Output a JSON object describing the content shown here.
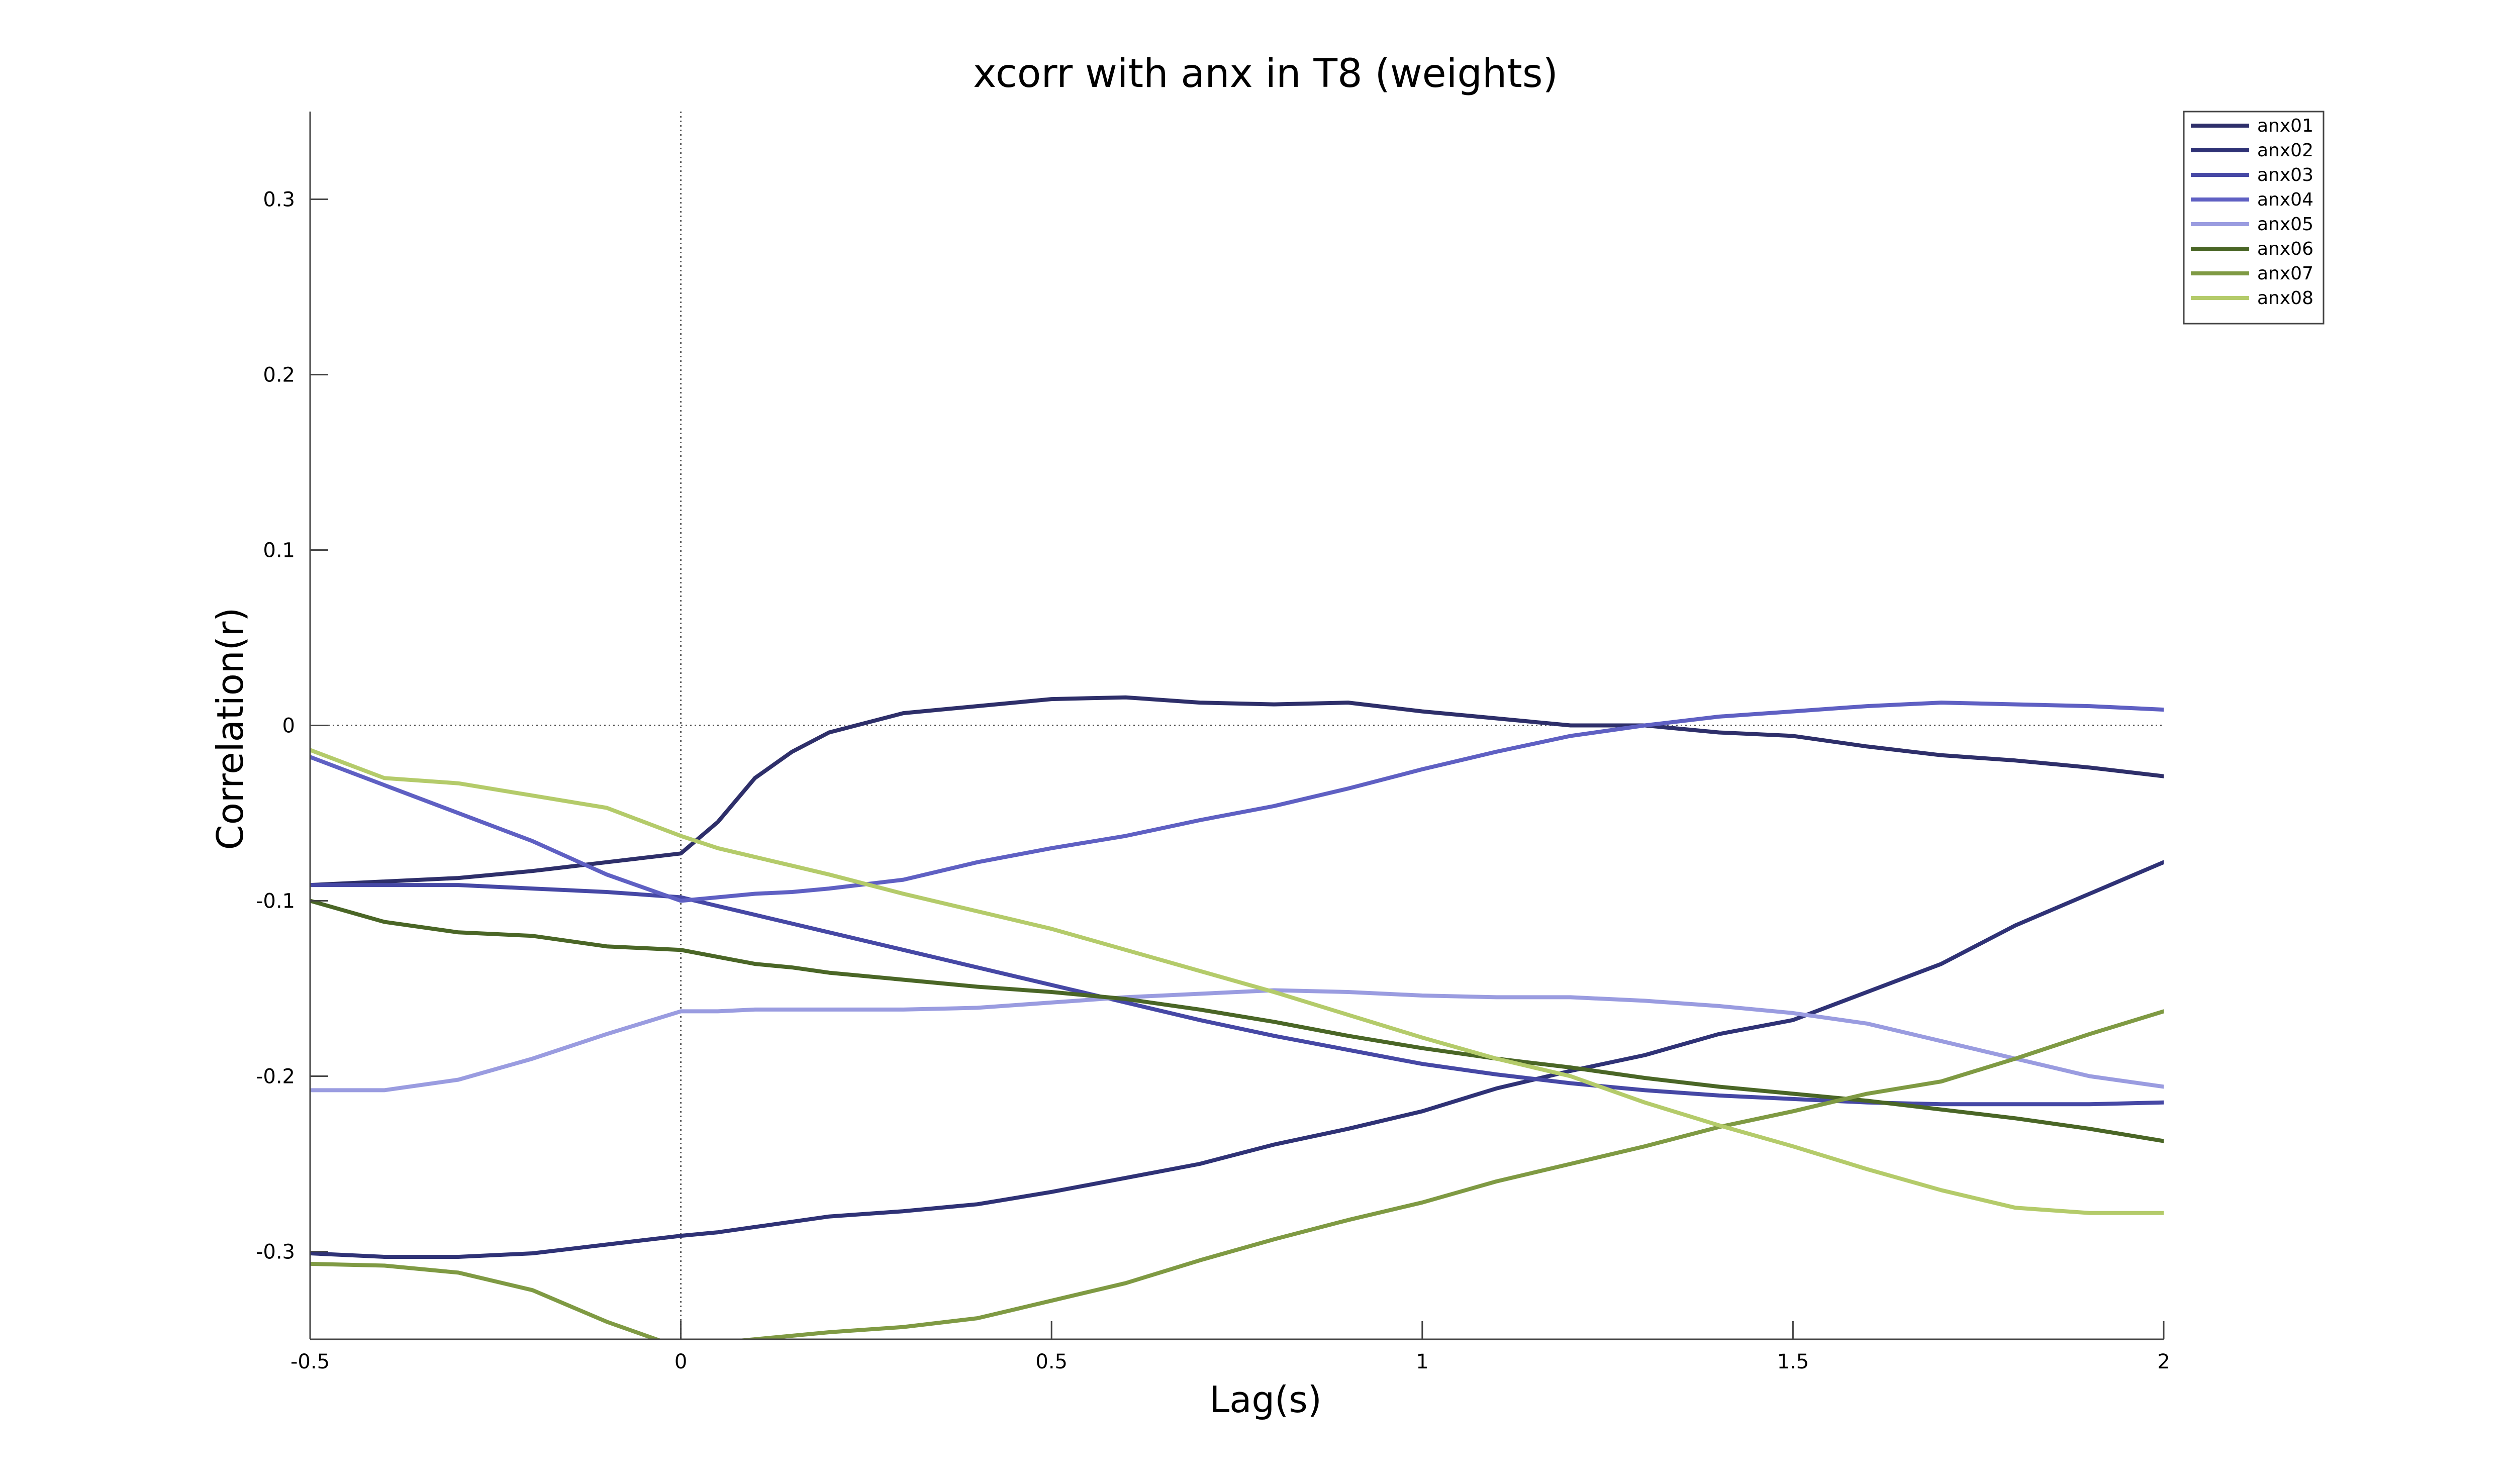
{
  "chart_data": {
    "type": "line",
    "title": "xcorr with anx in T8 (weights)",
    "xlabel": "Lag(s)",
    "ylabel": "Correlation(r)",
    "xlim": [
      -0.5,
      2
    ],
    "ylim": [
      -0.35,
      0.35
    ],
    "xticks": [
      -0.5,
      0,
      0.5,
      1,
      1.5,
      2
    ],
    "xtick_labels": [
      "-0.5",
      "0",
      "0.5",
      "1",
      "1.5",
      "2"
    ],
    "yticks": [
      -0.3,
      -0.2,
      -0.1,
      0,
      0.1,
      0.2,
      0.3
    ],
    "ytick_labels": [
      "-0.3",
      "-0.2",
      "-0.1",
      "0",
      "0.1",
      "0.2",
      "0.3"
    ],
    "grid": false,
    "reference_lines": {
      "x": 0,
      "y": 0
    },
    "legend_position": "top-right",
    "x": [
      -0.5,
      -0.4,
      -0.3,
      -0.2,
      -0.1,
      0,
      0.05,
      0.1,
      0.15,
      0.2,
      0.3,
      0.4,
      0.5,
      0.6,
      0.7,
      0.8,
      0.9,
      1.0,
      1.1,
      1.2,
      1.3,
      1.4,
      1.5,
      1.6,
      1.7,
      1.8,
      1.9,
      2.0
    ],
    "series": [
      {
        "name": "anx01",
        "color": "#2e2f6a",
        "values": [
          -0.091,
          -0.089,
          -0.087,
          -0.083,
          -0.078,
          -0.073,
          -0.055,
          -0.03,
          -0.015,
          -0.004,
          0.007,
          0.011,
          0.015,
          0.016,
          0.013,
          0.012,
          0.013,
          0.008,
          0.004,
          0.0,
          0.0,
          -0.004,
          -0.006,
          -0.012,
          -0.017,
          -0.02,
          -0.024,
          -0.029
        ]
      },
      {
        "name": "anx02",
        "color": "#2f3276",
        "values": [
          -0.301,
          -0.303,
          -0.303,
          -0.301,
          -0.296,
          -0.291,
          -0.289,
          -0.286,
          -0.283,
          -0.28,
          -0.277,
          -0.273,
          -0.266,
          -0.258,
          -0.25,
          -0.239,
          -0.23,
          -0.22,
          -0.207,
          -0.197,
          -0.188,
          -0.176,
          -0.168,
          -0.152,
          -0.136,
          -0.114,
          -0.096,
          -0.078
        ]
      },
      {
        "name": "anx03",
        "color": "#4648a5",
        "values": [
          -0.091,
          -0.091,
          -0.091,
          -0.093,
          -0.095,
          -0.098,
          -0.103,
          -0.108,
          -0.113,
          -0.118,
          -0.128,
          -0.138,
          -0.148,
          -0.158,
          -0.168,
          -0.177,
          -0.185,
          -0.193,
          -0.199,
          -0.204,
          -0.208,
          -0.211,
          -0.213,
          -0.215,
          -0.216,
          -0.216,
          -0.216,
          -0.215
        ]
      },
      {
        "name": "anx04",
        "color": "#5f60c3",
        "values": [
          -0.018,
          -0.034,
          -0.05,
          -0.066,
          -0.085,
          -0.1,
          -0.098,
          -0.096,
          -0.095,
          -0.093,
          -0.088,
          -0.078,
          -0.07,
          -0.063,
          -0.054,
          -0.046,
          -0.036,
          -0.025,
          -0.015,
          -0.006,
          0.0,
          0.005,
          0.008,
          0.011,
          0.013,
          0.012,
          0.011,
          0.009
        ]
      },
      {
        "name": "anx05",
        "color": "#9a9ce0",
        "values": [
          -0.208,
          -0.208,
          -0.202,
          -0.19,
          -0.176,
          -0.163,
          -0.163,
          -0.162,
          -0.162,
          -0.162,
          -0.162,
          -0.161,
          -0.158,
          -0.155,
          -0.153,
          -0.151,
          -0.152,
          -0.154,
          -0.155,
          -0.155,
          -0.157,
          -0.16,
          -0.164,
          -0.17,
          -0.18,
          -0.19,
          -0.2,
          -0.206
        ]
      },
      {
        "name": "anx06",
        "color": "#4a6626",
        "values": [
          -0.1,
          -0.112,
          -0.118,
          -0.12,
          -0.126,
          -0.128,
          -0.132,
          -0.136,
          -0.138,
          -0.141,
          -0.145,
          -0.149,
          -0.152,
          -0.156,
          -0.162,
          -0.169,
          -0.177,
          -0.184,
          -0.19,
          -0.195,
          -0.201,
          -0.206,
          -0.21,
          -0.214,
          -0.219,
          -0.224,
          -0.23,
          -0.237
        ]
      },
      {
        "name": "anx07",
        "color": "#7f9a43",
        "values": [
          -0.307,
          -0.308,
          -0.312,
          -0.322,
          -0.34,
          -0.355,
          -0.352,
          -0.35,
          -0.348,
          -0.346,
          -0.343,
          -0.338,
          -0.328,
          -0.318,
          -0.305,
          -0.293,
          -0.282,
          -0.272,
          -0.26,
          -0.25,
          -0.24,
          -0.229,
          -0.22,
          -0.21,
          -0.203,
          -0.19,
          -0.176,
          -0.163
        ]
      },
      {
        "name": "anx08",
        "color": "#b4cb6a",
        "values": [
          -0.014,
          -0.03,
          -0.033,
          -0.04,
          -0.047,
          -0.063,
          -0.07,
          -0.075,
          -0.08,
          -0.085,
          -0.096,
          -0.106,
          -0.116,
          -0.128,
          -0.14,
          -0.152,
          -0.165,
          -0.178,
          -0.19,
          -0.2,
          -0.215,
          -0.228,
          -0.24,
          -0.253,
          -0.265,
          -0.275,
          -0.278,
          -0.278
        ]
      }
    ]
  }
}
